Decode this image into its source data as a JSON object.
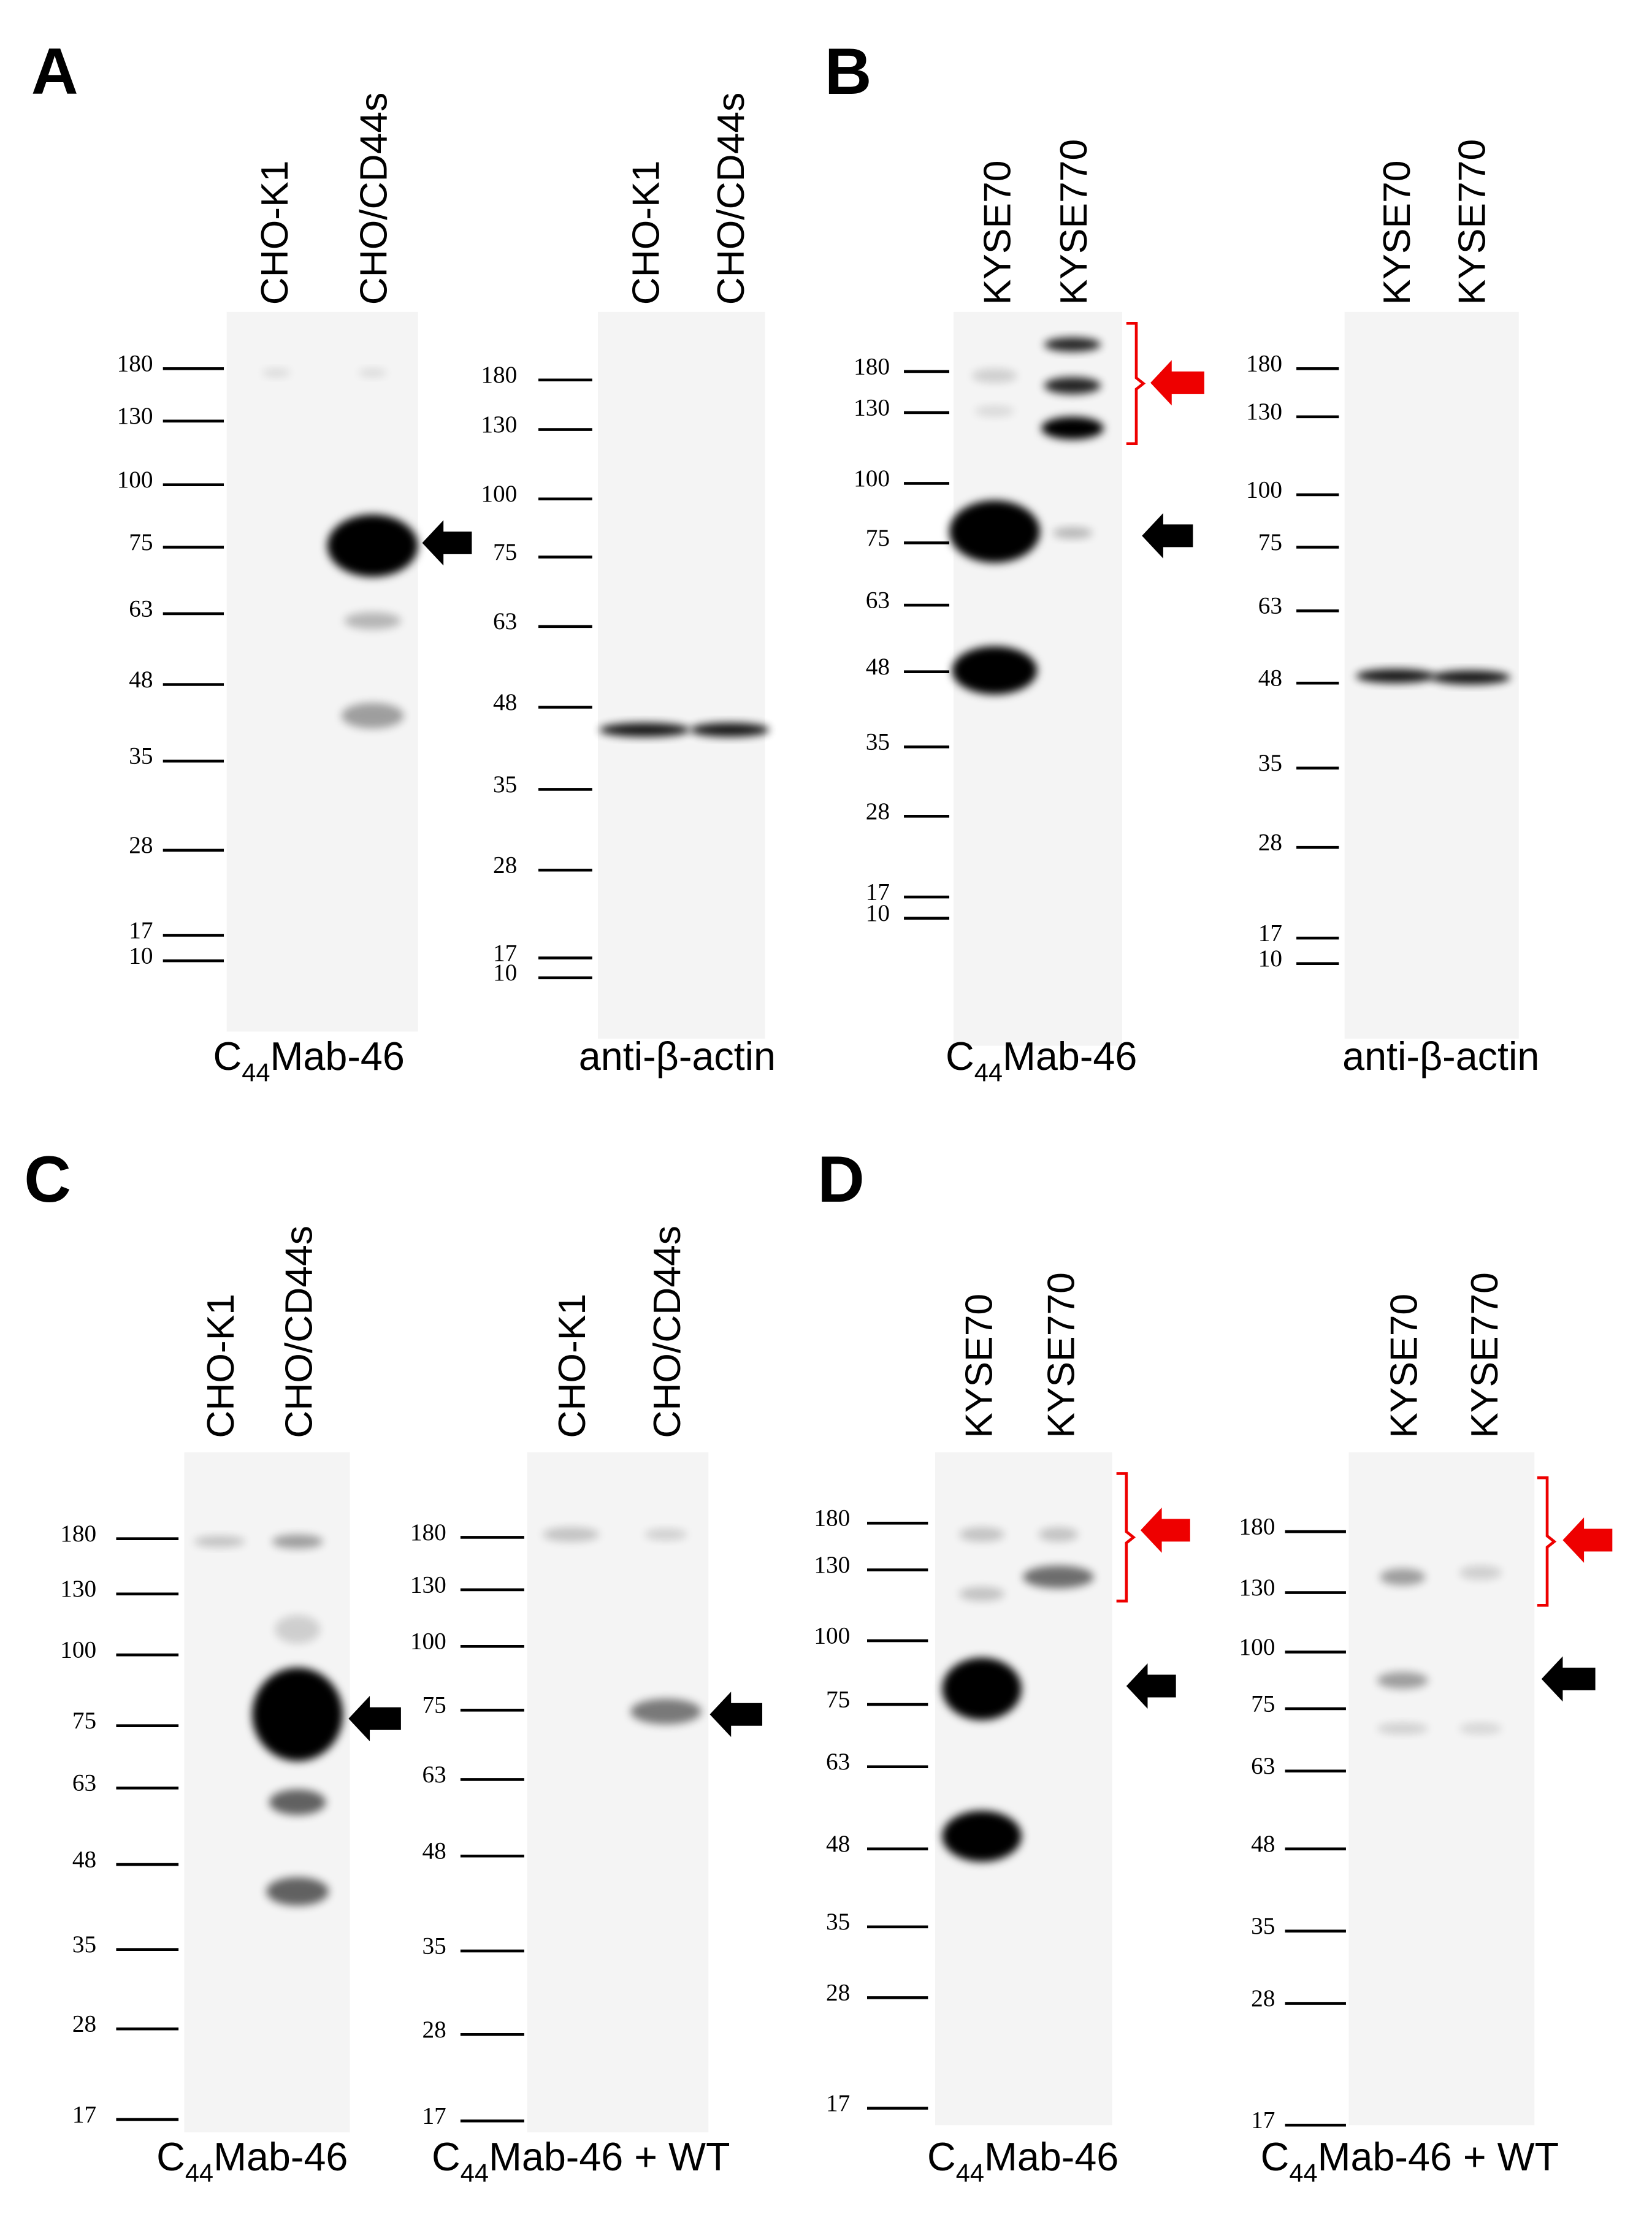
{
  "panels": [
    {
      "label": "A",
      "blots": [
        {
          "lanes": [
            "CHO-K1",
            "CHO/CD44s"
          ],
          "markers": [
            "180",
            "130",
            "100",
            "75",
            "63",
            "48",
            "35",
            "28",
            "17",
            "10"
          ],
          "antibody": {
            "prefix": "C",
            "subscript": "44",
            "suffix": "Mab-46"
          }
        },
        {
          "lanes": [
            "CHO-K1",
            "CHO/CD44s"
          ],
          "markers": [
            "180",
            "130",
            "100",
            "75",
            "63",
            "48",
            "35",
            "28",
            "17",
            "10"
          ],
          "antibody": {
            "text": "anti-β-actin"
          }
        }
      ]
    },
    {
      "label": "B",
      "blots": [
        {
          "lanes": [
            "KYSE70",
            "KYSE770"
          ],
          "markers": [
            "180",
            "130",
            "100",
            "75",
            "63",
            "48",
            "35",
            "28",
            "17",
            "10"
          ],
          "antibody": {
            "prefix": "C",
            "subscript": "44",
            "suffix": "Mab-46"
          }
        },
        {
          "lanes": [
            "KYSE70",
            "KYSE770"
          ],
          "markers": [
            "180",
            "130",
            "100",
            "75",
            "63",
            "48",
            "35",
            "28",
            "17",
            "10"
          ],
          "antibody": {
            "text": "anti-β-actin"
          }
        }
      ]
    },
    {
      "label": "C",
      "blots": [
        {
          "lanes": [
            "CHO-K1",
            "CHO/CD44s"
          ],
          "markers": [
            "180",
            "130",
            "100",
            "75",
            "63",
            "48",
            "35",
            "28",
            "17"
          ],
          "antibody": {
            "prefix": "C",
            "subscript": "44",
            "suffix": "Mab-46"
          }
        },
        {
          "lanes": [
            "CHO-K1",
            "CHO/CD44s"
          ],
          "markers": [
            "180",
            "130",
            "100",
            "75",
            "63",
            "48",
            "35",
            "28",
            "17"
          ],
          "antibody": {
            "prefix": "C",
            "subscript": "44",
            "suffix": "Mab-46 + WT"
          }
        }
      ]
    },
    {
      "label": "D",
      "blots": [
        {
          "lanes": [
            "KYSE70",
            "KYSE770"
          ],
          "markers": [
            "180",
            "130",
            "100",
            "75",
            "63",
            "48",
            "35",
            "28",
            "17"
          ],
          "antibody": {
            "prefix": "C",
            "subscript": "44",
            "suffix": "Mab-46"
          }
        },
        {
          "lanes": [
            "KYSE70",
            "KYSE770"
          ],
          "markers": [
            "180",
            "130",
            "100",
            "75",
            "63",
            "48",
            "35",
            "28",
            "17"
          ],
          "antibody": {
            "prefix": "C",
            "subscript": "44",
            "suffix": "Mab-46 + WT"
          }
        }
      ]
    }
  ]
}
